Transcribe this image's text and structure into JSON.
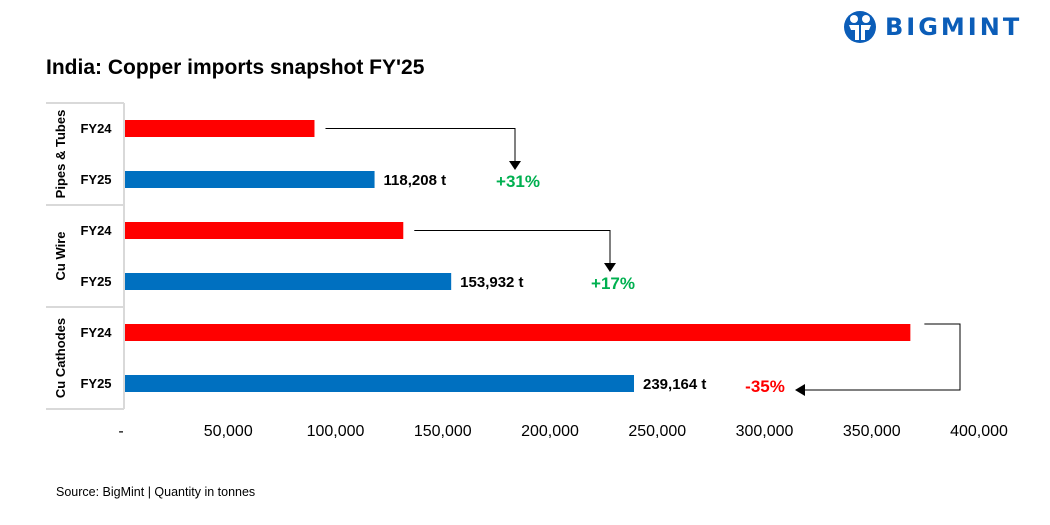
{
  "title": "India: Copper imports snapshot FY'25",
  "source": "Source: BigMint | Quantity in tonnes",
  "logo": "BIGMINT",
  "colors": {
    "FY24": "#ff0000",
    "FY25": "#0070c0",
    "positive": "#00b050",
    "negative": "#ff0000"
  },
  "chart_data": {
    "type": "bar",
    "orientation": "horizontal",
    "title": "India: Copper imports snapshot FY'25",
    "xlim": [
      0,
      400000
    ],
    "x_ticks": [
      "-",
      "50,000",
      "100,000",
      "150,000",
      "200,000",
      "250,000",
      "300,000",
      "350,000",
      "400,000"
    ],
    "grid": false,
    "groups": [
      {
        "name": "Pipes & Tubes",
        "bars": [
          {
            "label": "FY24",
            "value": 90200
          },
          {
            "label": "FY25",
            "value": 118208,
            "data_label": "118,208 t"
          }
        ],
        "change": "+31%",
        "change_sign": "positive"
      },
      {
        "name": "Cu Wire",
        "bars": [
          {
            "label": "FY24",
            "value": 131600
          },
          {
            "label": "FY25",
            "value": 153932,
            "data_label": "153,932 t"
          }
        ],
        "change": "+17%",
        "change_sign": "positive"
      },
      {
        "name": "Cu Cathodes",
        "bars": [
          {
            "label": "FY24",
            "value": 368000
          },
          {
            "label": "FY25",
            "value": 239164,
            "data_label": "239,164 t"
          }
        ],
        "change": "-35%",
        "change_sign": "negative"
      }
    ]
  }
}
